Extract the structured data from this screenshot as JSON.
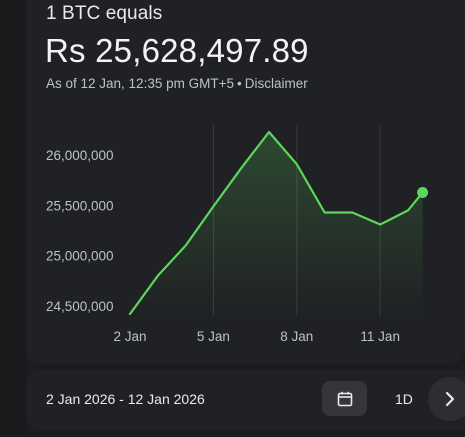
{
  "header": {
    "eyebrow": "1 BTC equals",
    "price": "Rs 25,628,497.89",
    "as_of": "As of 12 Jan, 12:35 pm GMT+5",
    "separator": "•",
    "disclaimer": "Disclaimer"
  },
  "chart_data": {
    "type": "area",
    "title": "",
    "xlabel": "",
    "ylabel": "",
    "currency": "Rs",
    "x_ticks": [
      "2 Jan",
      "5 Jan",
      "8 Jan",
      "11 Jan"
    ],
    "y_ticks": [
      "26,000,000",
      "25,500,000",
      "25,000,000",
      "24,500,000"
    ],
    "ylim": [
      24400000,
      26300000
    ],
    "xlim": [
      "2026-01-02",
      "2026-01-12"
    ],
    "series": [
      {
        "x": [
          "2026-01-02",
          "2026-01-03",
          "2026-01-04",
          "2026-01-05",
          "2026-01-06",
          "2026-01-07",
          "2026-01-08",
          "2026-01-09",
          "2026-01-10",
          "2026-01-11",
          "2026-01-12",
          "2026-01-12T12:35"
        ],
        "values": [
          24420000,
          24800000,
          25100000,
          25490000,
          25870000,
          26230000,
          25910000,
          25430000,
          25430000,
          25310000,
          25450000,
          25628497.89
        ]
      }
    ],
    "colors": {
      "line": "#5bd75b",
      "marker": "#5bd75b",
      "axis_label": "#bdc1c6",
      "grid": "#3a3b3e"
    },
    "grid": "vertical"
  },
  "footer": {
    "date_range": "2 Jan 2026 - 12 Jan 2026",
    "interval": "1D",
    "calendar_icon": "calendar-icon",
    "next_icon": "chevron-right-icon"
  }
}
